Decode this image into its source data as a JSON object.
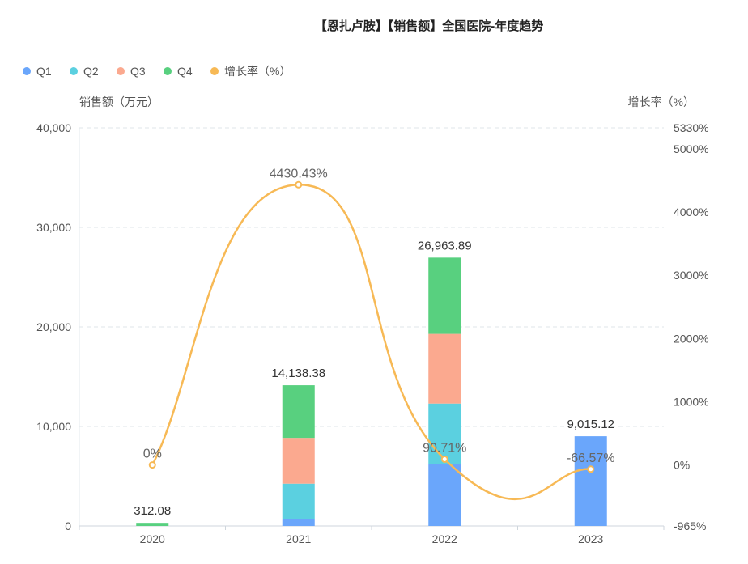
{
  "chart_data": {
    "type": "bar",
    "title": "【恩扎卢胺】【销售额】全国医院-年度趋势",
    "categories": [
      "2020",
      "2021",
      "2022",
      "2023"
    ],
    "stacked": true,
    "series": [
      {
        "name": "Q1",
        "type": "bar",
        "color": "#6aa6fb",
        "values": [
          0,
          650,
          6200,
          9015.12
        ]
      },
      {
        "name": "Q2",
        "type": "bar",
        "color": "#5bd0e0",
        "values": [
          0,
          3600,
          6100,
          0
        ]
      },
      {
        "name": "Q3",
        "type": "bar",
        "color": "#fba98f",
        "values": [
          0,
          4600,
          7000,
          0
        ]
      },
      {
        "name": "Q4",
        "type": "bar",
        "color": "#58d07f",
        "values": [
          312.08,
          5288.38,
          7663.89,
          0
        ]
      },
      {
        "name": "增长率（%）",
        "type": "line",
        "axis": "right",
        "color": "#f7b955",
        "values": [
          0,
          4430.43,
          90.71,
          -66.57
        ]
      }
    ],
    "totals": [
      312.08,
      14138.38,
      26963.89,
      9015.12
    ],
    "total_labels": [
      "312.08",
      "14,138.38",
      "26,963.89",
      "9,015.12"
    ],
    "rate_labels": [
      "0%",
      "4430.43%",
      "90.71%",
      "-66.57%"
    ],
    "ylabel": "销售额（万元）",
    "ylabel_right": "增长率（%）",
    "ylim": [
      0,
      40000
    ],
    "yticks": [
      0,
      10000,
      20000,
      30000,
      40000
    ],
    "ytick_labels": [
      "0",
      "10,000",
      "20,000",
      "30,000",
      "40,000"
    ],
    "ylim_right": [
      -965,
      5330
    ],
    "yticks_right": [
      -965,
      0,
      1000,
      2000,
      3000,
      4000,
      5000,
      5330
    ],
    "ytick_right_labels": [
      "-965%",
      "0%",
      "1000%",
      "2000%",
      "3000%",
      "4000%",
      "5000%",
      "5330%"
    ],
    "grid": true,
    "legend_position": "top-left"
  }
}
